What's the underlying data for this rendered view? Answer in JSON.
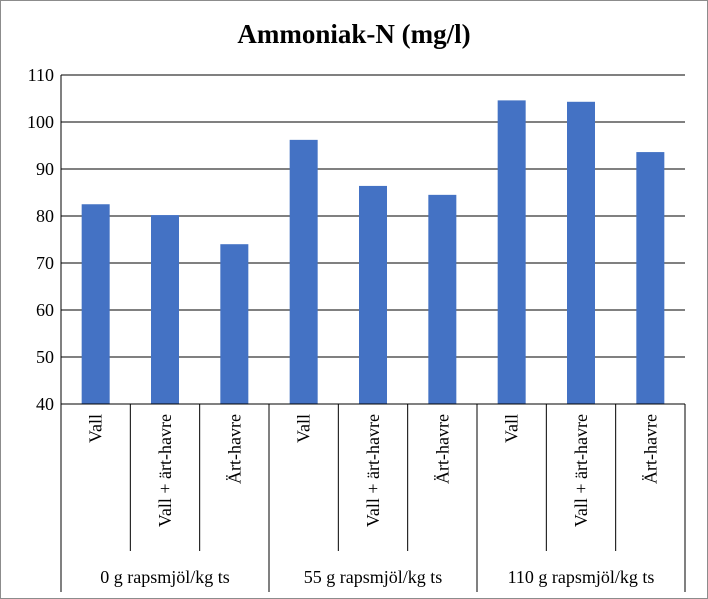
{
  "chart_data": {
    "type": "bar",
    "title": "Ammoniak-N  (mg/l)",
    "xlabel": "",
    "ylabel": "",
    "ylim": [
      40,
      110
    ],
    "yticks": [
      40,
      50,
      60,
      70,
      80,
      90,
      100,
      110
    ],
    "grid": true,
    "legend": "none",
    "bar_color": "#4472C4",
    "groups": [
      {
        "label": "0 g rapsmjöl/kg ts",
        "categories": [
          "Vall",
          "Vall + ärt-havre",
          "Ärt-havre"
        ],
        "values": [
          82.5,
          80.2,
          74.0
        ]
      },
      {
        "label": "55 g rapsmjöl/kg ts",
        "categories": [
          "Vall",
          "Vall + ärt-havre",
          "Ärt-havre"
        ],
        "values": [
          96.2,
          86.4,
          84.5
        ]
      },
      {
        "label": "110 g rapsmjöl/kg ts",
        "categories": [
          "Vall",
          "Vall + ärt-havre",
          "Ärt-havre"
        ],
        "values": [
          104.6,
          104.3,
          93.6
        ]
      }
    ]
  }
}
